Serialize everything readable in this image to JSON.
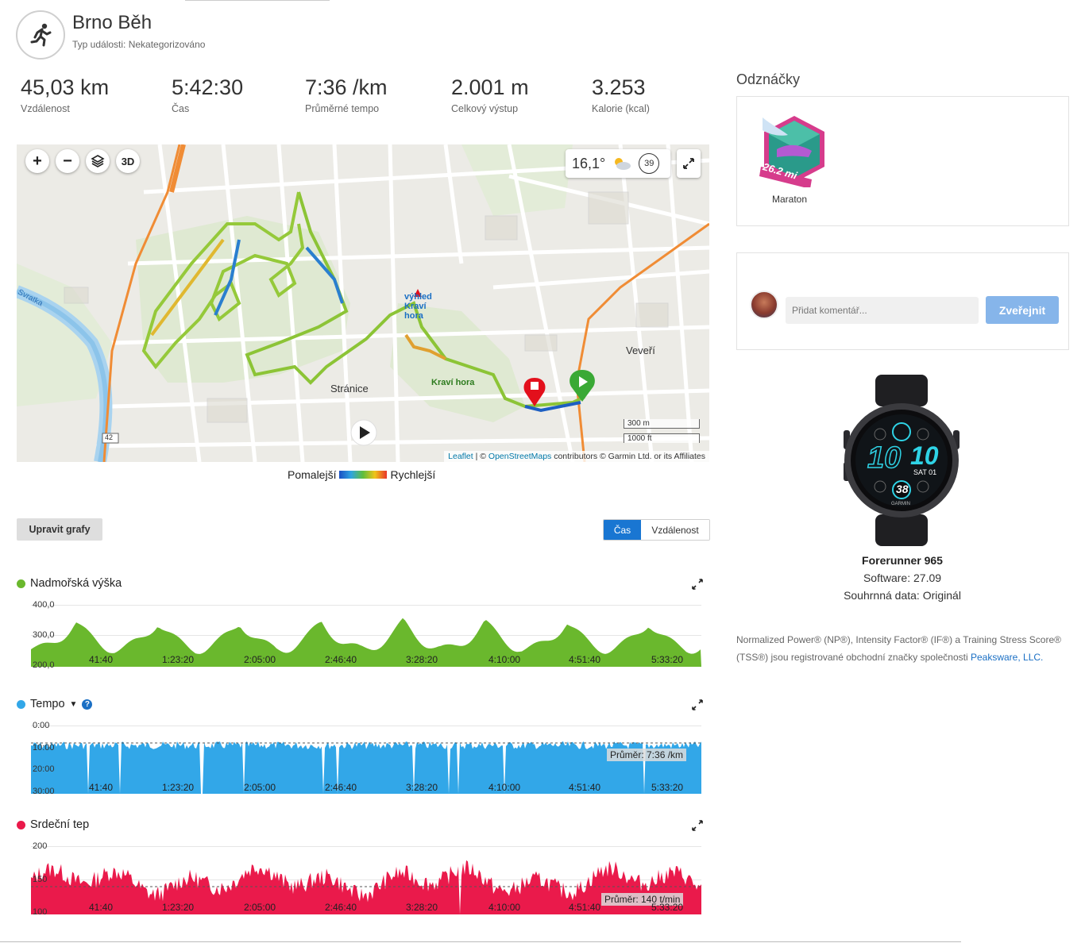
{
  "header": {
    "title": "Brno Běh",
    "event_type": "Typ události: Nekategorizováno"
  },
  "stats": [
    {
      "value": "45,03 km",
      "label": "Vzdálenost"
    },
    {
      "value": "5:42:30",
      "label": "Čas"
    },
    {
      "value": "7:36 /km",
      "label": "Průměrné tempo"
    },
    {
      "value": "2.001 m",
      "label": "Celkový výstup"
    },
    {
      "value": "3.253",
      "label": "Kalorie (kcal)"
    }
  ],
  "map": {
    "zoom_in": "+",
    "zoom_out": "−",
    "btn_3d": "3D",
    "temperature": "16,1°",
    "wind": "39",
    "labels": {
      "strana": "Stránice",
      "veveri": "Veveří",
      "kravi_hora": "Kraví hora",
      "vyhlidka": "výhled Kraví hora",
      "svratka": "Svratka",
      "road": "42"
    },
    "scale_m": "300 m",
    "scale_ft": "1000 ft",
    "attribution": {
      "leaflet": "Leaflet",
      "sep": " | © ",
      "osm": "OpenStreetMaps",
      "rest": " contributors © Garmin Ltd. or its Affiliates"
    }
  },
  "legend": {
    "slower": "Pomalejší",
    "faster": "Rychlejší"
  },
  "controls": {
    "edit_charts": "Upravit grafy",
    "toggle_time": "Čas",
    "toggle_distance": "Vzdálenost"
  },
  "charts": {
    "x_ticks": [
      "41:40",
      "1:23:20",
      "2:05:00",
      "2:46:40",
      "3:28:20",
      "4:10:00",
      "4:51:40",
      "5:33:20"
    ],
    "elevation": {
      "title": "Nadmořská výška",
      "y_ticks": [
        "400,0",
        "300,0",
        "200,0"
      ],
      "color": "#6ab82d"
    },
    "pace": {
      "title": "Tempo",
      "y_ticks": [
        "0:00",
        "10:00",
        "20:00",
        "30:00"
      ],
      "avg": "Průměr: 7:36 /km",
      "color": "#32a7e8"
    },
    "hr": {
      "title": "Srdeční tep",
      "y_ticks": [
        "200",
        "150",
        "100"
      ],
      "avg": "Průměr: 140 t/min",
      "color": "#ea1a4b"
    }
  },
  "badges": {
    "section_title": "Odznáčky",
    "items": [
      {
        "label": "Maraton",
        "badge_text": "26.2 mi"
      }
    ]
  },
  "comment": {
    "placeholder": "Přidat komentář...",
    "post": "Zveřejnit"
  },
  "device": {
    "name": "Forerunner 965",
    "software": "Software: 27.09",
    "summary": "Souhrnná data: Originál",
    "watch_time_a": "10",
    "watch_time_b": "10",
    "watch_date": "SAT 01",
    "watch_center": "38",
    "brand": "GARMIN"
  },
  "legal": {
    "text": "Normalized Power® (NP®), Intensity Factor® (IF®) a Training Stress Score® (TSS®) jsou registrované obchodní značky společnosti ",
    "link": "Peaksware, LLC."
  }
}
